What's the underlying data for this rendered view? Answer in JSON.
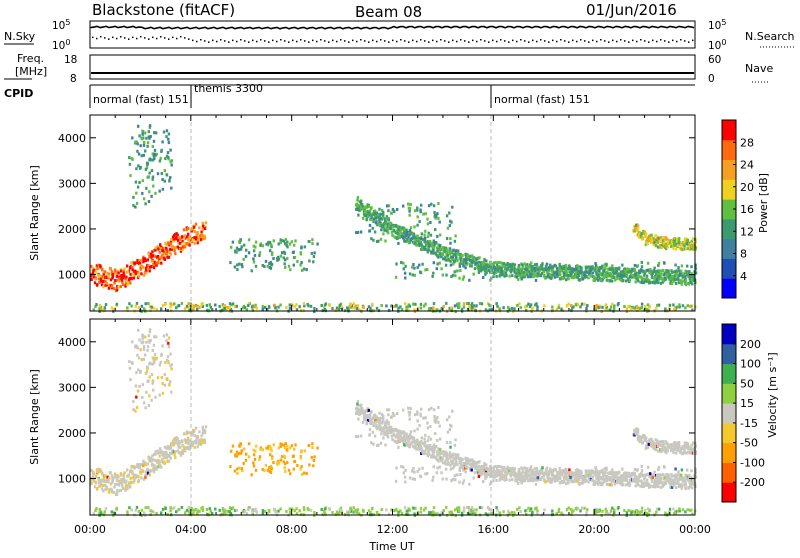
{
  "header": {
    "station": "Blackstone (fitACF)",
    "beam": "Beam 08",
    "date": "01/Jun/2016"
  },
  "noise_panel": {
    "left_label": "N.Sky",
    "right_label": "N.Search",
    "left_ticks": [
      "10^5",
      "10^0"
    ],
    "right_ticks": [
      "10^5",
      "10^0"
    ]
  },
  "freq_panel": {
    "left_label_1": "Freq.",
    "left_label_2": "[MHz]",
    "right_label": "Nave",
    "left_ticks": [
      "18",
      "8"
    ],
    "right_ticks": [
      "60",
      "0"
    ]
  },
  "cpid_panel": {
    "label": "CPID",
    "segments": [
      {
        "start_hour": 0,
        "label": "normal (fast) 151"
      },
      {
        "start_hour": 4,
        "label": "themis 3300"
      },
      {
        "start_hour": 16,
        "label": "normal (fast) 151"
      }
    ]
  },
  "chart_data": [
    {
      "type": "heatmap",
      "name": "Power",
      "ylabel": "Slant Range [km]",
      "xlabel": "Time UT",
      "ylim": [
        200,
        4500
      ],
      "xlim_hours": [
        0,
        24
      ],
      "yticks": [
        "1000",
        "2000",
        "3000",
        "4000"
      ],
      "xticks": [
        "00:00",
        "04:00",
        "08:00",
        "12:00",
        "16:00",
        "20:00",
        "00:00"
      ],
      "colorbar": {
        "label": "Power [dB]",
        "ticks": [
          "28",
          "24",
          "20",
          "16",
          "12",
          "8",
          "4"
        ],
        "colors": [
          "#0000ff",
          "#1f4fb4",
          "#3f7fa0",
          "#3c9a6e",
          "#5fbf3f",
          "#f0d020",
          "#f5a020",
          "#ff6a10",
          "#ff0000"
        ]
      },
      "features": [
        {
          "desc": "strong echo band",
          "t": [
            0,
            1,
            2,
            3,
            4,
            4.5
          ],
          "r": [
            1050,
            900,
            1200,
            1600,
            1900,
            1950
          ]
        },
        {
          "desc": "F-region band",
          "t": [
            10.5,
            12,
            14,
            16,
            18,
            20,
            22,
            24
          ],
          "r": [
            2600,
            2000,
            1500,
            1150,
            1100,
            1050,
            1000,
            950
          ]
        },
        {
          "desc": "late band",
          "t": [
            21.5,
            22,
            23,
            24
          ],
          "r": [
            2100,
            1800,
            1700,
            1700
          ]
        }
      ]
    },
    {
      "type": "heatmap",
      "name": "Velocity",
      "ylabel": "Slant Range [km]",
      "xlabel": "Time UT",
      "ylim": [
        200,
        4500
      ],
      "xlim_hours": [
        0,
        24
      ],
      "yticks": [
        "1000",
        "2000",
        "3000",
        "4000"
      ],
      "xticks": [
        "00:00",
        "04:00",
        "08:00",
        "12:00",
        "16:00",
        "20:00",
        "00:00"
      ],
      "colorbar": {
        "label": "Velocity [m s⁻¹]",
        "ticks": [
          "200",
          "100",
          "50",
          "15",
          "-15",
          "-50",
          "-100",
          "-200"
        ],
        "colors": [
          "#ff0000",
          "#ff6000",
          "#ffa000",
          "#f5c830",
          "#c8c8c0",
          "#8fd040",
          "#3fb050",
          "#3060a0",
          "#0000c0"
        ]
      }
    }
  ],
  "time_axis": {
    "label": "Time UT",
    "ticks": [
      "00:00",
      "04:00",
      "08:00",
      "12:00",
      "16:00",
      "20:00",
      "00:00"
    ]
  }
}
